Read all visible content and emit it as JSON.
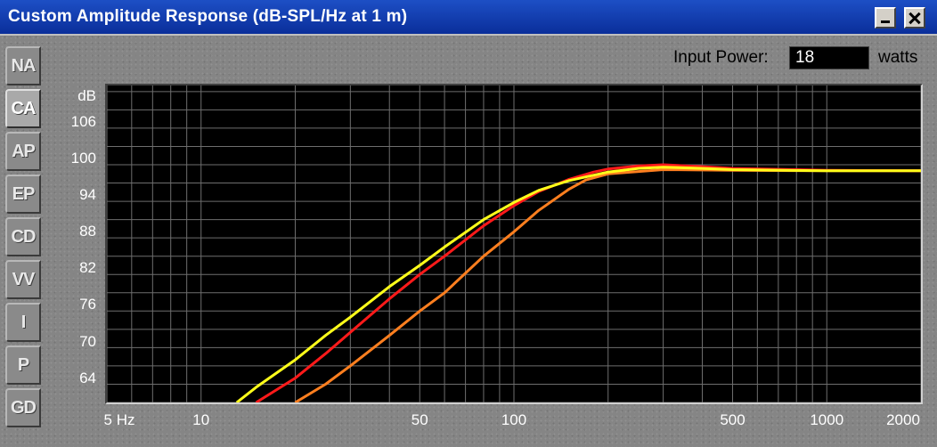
{
  "window": {
    "title": "Custom Amplitude Response (dB-SPL/Hz at 1 m)",
    "minimize_label": "_",
    "close_label": "X"
  },
  "tabs": [
    {
      "label": "NA",
      "active": false
    },
    {
      "label": "CA",
      "active": true
    },
    {
      "label": "AP",
      "active": false
    },
    {
      "label": "EP",
      "active": false
    },
    {
      "label": "CD",
      "active": false
    },
    {
      "label": "VV",
      "active": false
    },
    {
      "label": "I",
      "active": false
    },
    {
      "label": "P",
      "active": false
    },
    {
      "label": "GD",
      "active": false
    }
  ],
  "input_power": {
    "label": "Input Power:",
    "value": "18",
    "unit": "watts"
  },
  "chart_data": {
    "type": "line",
    "title": "",
    "xlabel": "",
    "ylabel": "dB",
    "x_scale": "log",
    "xlim": [
      5,
      2000
    ],
    "ylim": [
      60,
      112
    ],
    "grid": true,
    "x_tick_labels": [
      "5 Hz",
      "10",
      "50",
      "100",
      "500",
      "1000",
      "2000"
    ],
    "x_ticks": [
      5,
      10,
      50,
      100,
      500,
      1000,
      2000
    ],
    "y_tick_labels": [
      "dB",
      "106",
      "100",
      "94",
      "88",
      "82",
      "76",
      "70",
      "64"
    ],
    "y_ticks": [
      112,
      106,
      100,
      94,
      88,
      82,
      76,
      70,
      64
    ],
    "background": "#000000",
    "grid_color": "#6e6e6e",
    "series": [
      {
        "color": "#ff7f1f",
        "x": [
          20,
          25,
          30,
          40,
          50,
          60,
          80,
          100,
          120,
          150,
          170,
          200,
          300,
          500,
          1000,
          2000
        ],
        "y": [
          60,
          63,
          66,
          71,
          75,
          78,
          84,
          88,
          91.5,
          95,
          96.5,
          97.5,
          98.2,
          98.1,
          98.0,
          98.0
        ]
      },
      {
        "color": "#ff1a1a",
        "x": [
          15,
          20,
          25,
          30,
          40,
          50,
          60,
          80,
          100,
          120,
          150,
          180,
          200,
          250,
          300,
          400,
          500,
          1000,
          2000
        ],
        "y": [
          60,
          64,
          68,
          71.5,
          77,
          81,
          84,
          89,
          92.3,
          94.6,
          96.6,
          97.8,
          98.3,
          98.8,
          99.0,
          98.7,
          98.4,
          98.1,
          98.0
        ]
      },
      {
        "color": "#ffff1a",
        "x": [
          13,
          15,
          20,
          25,
          30,
          40,
          50,
          60,
          80,
          100,
          120,
          150,
          200,
          250,
          300,
          400,
          500,
          1000,
          2000
        ],
        "y": [
          60,
          62.5,
          67,
          71,
          74,
          79,
          82.5,
          85.5,
          90,
          92.8,
          94.8,
          96.4,
          97.8,
          98.4,
          98.6,
          98.4,
          98.2,
          98.0,
          98.0
        ]
      }
    ]
  }
}
